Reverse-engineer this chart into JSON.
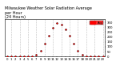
{
  "title": "Milwaukee Weather Solar Radiation Average\nper Hour\n(24 Hours)",
  "hours": [
    0,
    1,
    2,
    3,
    4,
    5,
    6,
    7,
    8,
    9,
    10,
    11,
    12,
    13,
    14,
    15,
    16,
    17,
    18,
    19,
    20,
    21,
    22,
    23
  ],
  "solar_avg": [
    0,
    0,
    0,
    0,
    0,
    0,
    2,
    15,
    60,
    130,
    210,
    290,
    340,
    330,
    280,
    210,
    130,
    60,
    15,
    2,
    0,
    0,
    0,
    0
  ],
  "dot_color": "#ff0000",
  "black_color": "#000000",
  "bg_color": "#ffffff",
  "grid_color": "#888888",
  "ylim": [
    0,
    380
  ],
  "xlim": [
    -0.5,
    23.5
  ],
  "title_fontsize": 3.5,
  "tick_fontsize": 2.8,
  "legend_color": "#ff0000",
  "legend_label": "Avg",
  "grid_hours": [
    1,
    3,
    5,
    7,
    9,
    11,
    13,
    15,
    17,
    19,
    21,
    23
  ],
  "yticks": [
    0,
    50,
    100,
    150,
    200,
    250,
    300,
    350
  ]
}
